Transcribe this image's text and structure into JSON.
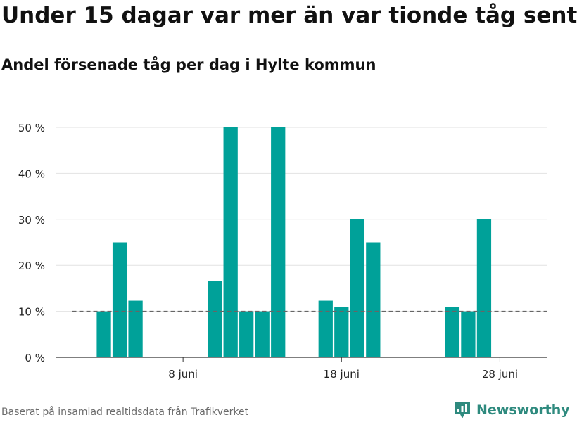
{
  "title": "Under 15 dagar var mer än var tionde tåg sent",
  "subtitle": "Andel försenade tåg per dag i Hylte kommun",
  "source": "Baserat på insamlad realtidsdata från Trafikverket",
  "brand": {
    "name": "Newsworthy",
    "icon": "newsworthy-logo-icon",
    "color": "#2e8a7e"
  },
  "colors": {
    "bar": "#00a199",
    "grid": "#e2e2e2",
    "axis": "#333333",
    "reference": "#666666"
  },
  "chart_data": {
    "type": "bar",
    "x_unit": "juni",
    "x": [
      3,
      4,
      5,
      10,
      11,
      12,
      13,
      14,
      17,
      18,
      19,
      20,
      25,
      26,
      27
    ],
    "values": [
      10,
      25,
      12.3,
      16.6,
      50,
      10,
      10,
      50,
      12.3,
      11,
      30,
      25,
      11,
      10,
      30
    ],
    "reference_line": {
      "value": 10,
      "x_from": 1,
      "x_to": 31,
      "style": "dashed"
    },
    "xlim": [
      0,
      31
    ],
    "ylim": [
      0,
      50
    ],
    "y_ticks": [
      0,
      10,
      20,
      30,
      40,
      50
    ],
    "y_tick_labels": [
      "0 %",
      "10 %",
      "20 %",
      "30 %",
      "40 %",
      "50 %"
    ],
    "x_ticks": [
      8,
      18,
      28
    ],
    "x_tick_labels": [
      "8 juni",
      "18 juni",
      "28 juni"
    ],
    "grid": true,
    "xlabel": "",
    "ylabel": ""
  }
}
